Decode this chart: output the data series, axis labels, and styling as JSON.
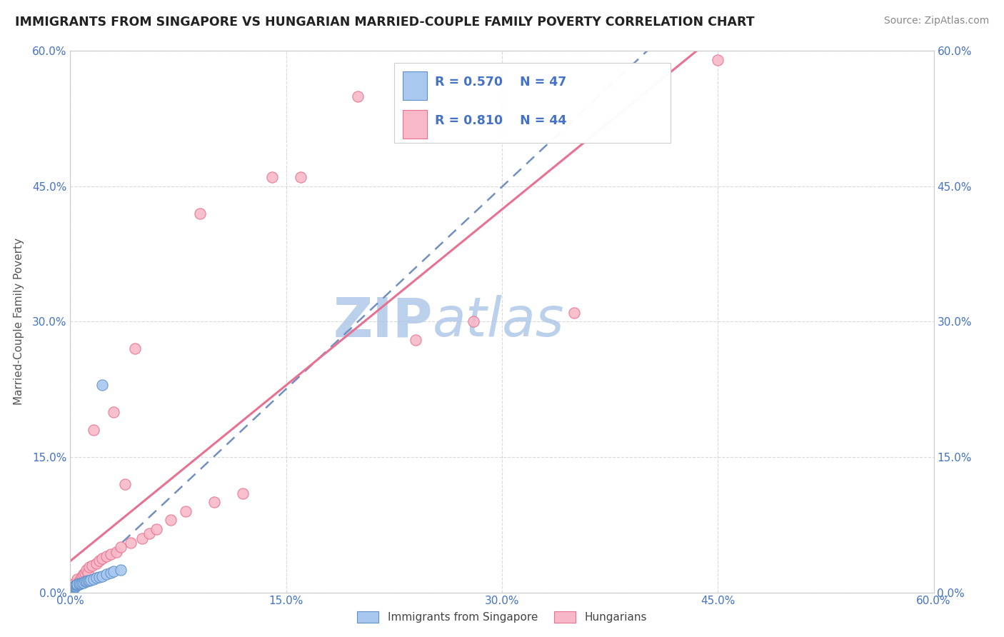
{
  "title": "IMMIGRANTS FROM SINGAPORE VS HUNGARIAN MARRIED-COUPLE FAMILY POVERTY CORRELATION CHART",
  "source": "Source: ZipAtlas.com",
  "ylabel": "Married-Couple Family Poverty",
  "xlim": [
    0.0,
    0.6
  ],
  "ylim": [
    0.0,
    0.6
  ],
  "tick_vals": [
    0.0,
    0.15,
    0.3,
    0.45,
    0.6
  ],
  "background_color": "#ffffff",
  "grid_color": "#d0d0d0",
  "legend_R1": "R = 0.570",
  "legend_N1": "N = 47",
  "legend_R2": "R = 0.810",
  "legend_N2": "N = 44",
  "blue_scatter_color": "#a8c8f0",
  "blue_edge_color": "#6090c8",
  "pink_scatter_color": "#f8b8c8",
  "pink_edge_color": "#e87090",
  "blue_line_color": "#7090c0",
  "pink_line_color": "#e87090",
  "tick_color": "#4472C4",
  "watermark_zip_color": "#b0c8e8",
  "watermark_atlas_color": "#b0c8e8",
  "sg_x": [
    0.0005,
    0.0006,
    0.0007,
    0.0008,
    0.0009,
    0.001,
    0.0011,
    0.0012,
    0.0013,
    0.0014,
    0.0015,
    0.0016,
    0.0017,
    0.0018,
    0.002,
    0.002,
    0.0022,
    0.0023,
    0.0025,
    0.003,
    0.003,
    0.0032,
    0.0035,
    0.004,
    0.004,
    0.0045,
    0.005,
    0.005,
    0.006,
    0.006,
    0.007,
    0.008,
    0.009,
    0.01,
    0.011,
    0.012,
    0.013,
    0.014,
    0.016,
    0.018,
    0.02,
    0.022,
    0.025,
    0.028,
    0.03,
    0.035,
    0.022
  ],
  "sg_y": [
    0.0005,
    0.001,
    0.0015,
    0.002,
    0.002,
    0.002,
    0.003,
    0.003,
    0.003,
    0.003,
    0.004,
    0.004,
    0.004,
    0.004,
    0.004,
    0.005,
    0.005,
    0.005,
    0.006,
    0.006,
    0.007,
    0.007,
    0.007,
    0.007,
    0.008,
    0.008,
    0.008,
    0.009,
    0.009,
    0.01,
    0.01,
    0.011,
    0.011,
    0.012,
    0.012,
    0.013,
    0.013,
    0.014,
    0.015,
    0.016,
    0.017,
    0.018,
    0.02,
    0.022,
    0.023,
    0.025,
    0.23
  ],
  "hu_x": [
    0.001,
    0.001,
    0.002,
    0.003,
    0.003,
    0.004,
    0.005,
    0.005,
    0.006,
    0.007,
    0.008,
    0.009,
    0.01,
    0.011,
    0.012,
    0.013,
    0.015,
    0.016,
    0.018,
    0.02,
    0.022,
    0.025,
    0.028,
    0.03,
    0.032,
    0.035,
    0.038,
    0.042,
    0.045,
    0.05,
    0.055,
    0.06,
    0.07,
    0.08,
    0.09,
    0.1,
    0.12,
    0.14,
    0.16,
    0.2,
    0.24,
    0.28,
    0.35,
    0.45
  ],
  "hu_y": [
    0.004,
    0.008,
    0.005,
    0.007,
    0.01,
    0.008,
    0.01,
    0.015,
    0.012,
    0.015,
    0.018,
    0.02,
    0.022,
    0.025,
    0.022,
    0.028,
    0.03,
    0.18,
    0.032,
    0.035,
    0.038,
    0.04,
    0.042,
    0.2,
    0.045,
    0.05,
    0.12,
    0.055,
    0.27,
    0.06,
    0.065,
    0.07,
    0.08,
    0.09,
    0.42,
    0.1,
    0.11,
    0.46,
    0.46,
    0.55,
    0.28,
    0.3,
    0.31,
    0.59
  ],
  "sg_line_x": [
    0.0,
    0.6
  ],
  "sg_line_y": [
    -0.005,
    0.6
  ],
  "hu_line_x": [
    0.0,
    0.6
  ],
  "hu_line_y": [
    0.01,
    0.59
  ]
}
